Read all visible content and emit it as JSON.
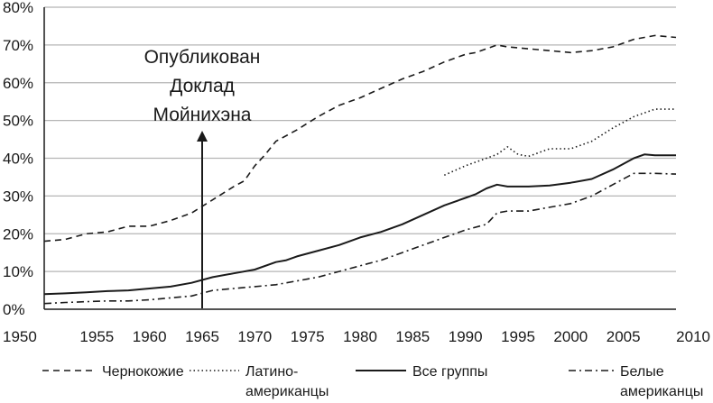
{
  "chart_data": {
    "type": "line",
    "title": "",
    "xlabel": "",
    "ylabel": "",
    "xlim": [
      1950,
      2010
    ],
    "ylim": [
      0,
      80
    ],
    "x_ticks": [
      1950,
      1955,
      1960,
      1965,
      1970,
      1975,
      1980,
      1985,
      1990,
      1995,
      2000,
      2005,
      2010
    ],
    "x_tick_labels": [
      "1950",
      "1955",
      "1960",
      "1965",
      "1970",
      "1975",
      "1980",
      "1985",
      "1990",
      "1995",
      "2000",
      "2005",
      "2010"
    ],
    "y_ticks": [
      0,
      10,
      20,
      30,
      40,
      50,
      60,
      70,
      80
    ],
    "y_tick_labels": [
      "0%",
      "10%",
      "20%",
      "30%",
      "40%",
      "50%",
      "60%",
      "70%",
      "80%"
    ],
    "grid": "horizontal",
    "legend_position": "bottom",
    "annotation": {
      "lines": [
        "Опубликован",
        "Доклад",
        "Мойнихэна"
      ],
      "x": 1965
    },
    "series": [
      {
        "name": "Чернокожие",
        "legend_lines": [
          "Чернокожие"
        ],
        "style": "dashed",
        "x": [
          1950,
          1952,
          1954,
          1956,
          1958,
          1960,
          1962,
          1964,
          1966,
          1968,
          1969,
          1970,
          1971,
          1972,
          1974,
          1976,
          1978,
          1980,
          1982,
          1984,
          1986,
          1988,
          1990,
          1991,
          1992,
          1993,
          1994,
          1996,
          1998,
          2000,
          2002,
          2004,
          2006,
          2008,
          2010
        ],
        "values": [
          18,
          18.5,
          20,
          20.5,
          22,
          22,
          23.5,
          25.5,
          29,
          32.5,
          34,
          38,
          41,
          44.5,
          47.5,
          51,
          54,
          56,
          58.5,
          61,
          63,
          65.5,
          67.5,
          68,
          69,
          70,
          69.5,
          69,
          68.5,
          68,
          68.5,
          69.5,
          71.5,
          72.5,
          72
        ]
      },
      {
        "name": "Латиноамериканцы",
        "legend_lines": [
          "Латино-",
          "американцы"
        ],
        "style": "dotted",
        "x": [
          1988,
          1990,
          1992,
          1993,
          1994,
          1995,
          1996,
          1998,
          2000,
          2002,
          2004,
          2006,
          2008,
          2010
        ],
        "values": [
          35.5,
          38,
          40,
          41,
          43,
          41,
          40.5,
          42.5,
          42.5,
          44.5,
          48,
          51,
          53,
          53
        ]
      },
      {
        "name": "Все группы",
        "legend_lines": [
          "Все группы"
        ],
        "style": "solid",
        "x": [
          1950,
          1952,
          1954,
          1956,
          1958,
          1960,
          1962,
          1964,
          1966,
          1968,
          1970,
          1972,
          1973,
          1974,
          1976,
          1978,
          1980,
          1982,
          1984,
          1986,
          1988,
          1990,
          1991,
          1992,
          1993,
          1994,
          1996,
          1998,
          2000,
          2002,
          2004,
          2006,
          2007,
          2008,
          2010
        ],
        "values": [
          4,
          4.2,
          4.5,
          4.8,
          5,
          5.5,
          6,
          7,
          8.5,
          9.5,
          10.5,
          12.5,
          13,
          14,
          15.5,
          17,
          19,
          20.5,
          22.5,
          25,
          27.5,
          29.5,
          30.5,
          32,
          33,
          32.5,
          32.5,
          32.8,
          33.5,
          34.5,
          37,
          40,
          41,
          40.8,
          40.8
        ]
      },
      {
        "name": "Белые американцы",
        "legend_lines": [
          "Белые",
          "американцы"
        ],
        "style": "dashdot",
        "x": [
          1950,
          1952,
          1954,
          1956,
          1958,
          1960,
          1962,
          1964,
          1966,
          1968,
          1970,
          1972,
          1974,
          1976,
          1978,
          1980,
          1982,
          1984,
          1986,
          1988,
          1990,
          1992,
          1993,
          1994,
          1996,
          1998,
          2000,
          2002,
          2004,
          2006,
          2008,
          2010
        ],
        "values": [
          1.5,
          1.8,
          2,
          2.2,
          2.2,
          2.5,
          3,
          3.5,
          5,
          5.5,
          6,
          6.5,
          7.5,
          8.5,
          10,
          11.5,
          13,
          15,
          17,
          19,
          21,
          22.5,
          25.5,
          26,
          26,
          27,
          28,
          30,
          33,
          36,
          36,
          35.8
        ]
      }
    ]
  }
}
